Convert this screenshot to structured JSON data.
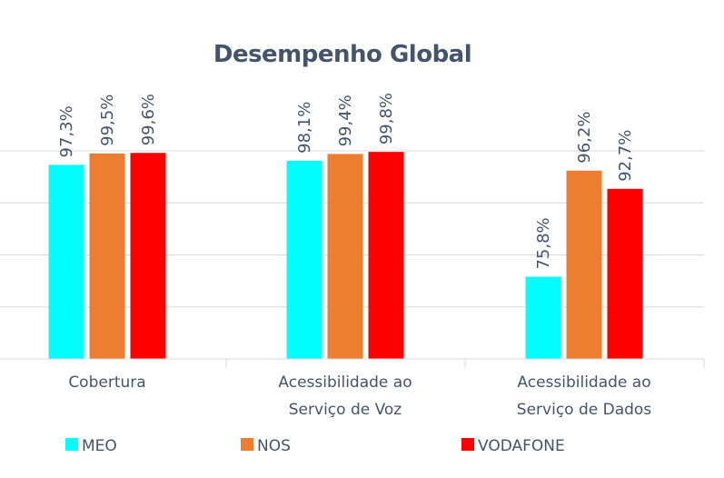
{
  "chart_data": {
    "type": "bar",
    "title": "Desempenho Global",
    "xlabel": "",
    "ylabel": "",
    "ylim": [
      60,
      100
    ],
    "grid": true,
    "gridlines": [
      70,
      80,
      90,
      100
    ],
    "legend_position": "bottom",
    "categories": [
      [
        "Cobertura"
      ],
      [
        "Acessibilidade ao",
        "Serviço de Voz"
      ],
      [
        "Acessibilidade ao",
        "Serviço de Dados"
      ]
    ],
    "series": [
      {
        "name": "MEO",
        "color": "#00ffff",
        "values": [
          97.3,
          98.1,
          75.8
        ],
        "labels": [
          "97,3%",
          "98,1%",
          "75,8%"
        ]
      },
      {
        "name": "NOS",
        "color": "#ed7d31",
        "values": [
          99.5,
          99.4,
          96.2
        ],
        "labels": [
          "99,5%",
          "99,4%",
          "96,2%"
        ]
      },
      {
        "name": "VODAFONE",
        "color": "#ff0000",
        "values": [
          99.6,
          99.8,
          92.7
        ],
        "labels": [
          "99,6%",
          "99,8%",
          "92,7%"
        ]
      }
    ]
  }
}
